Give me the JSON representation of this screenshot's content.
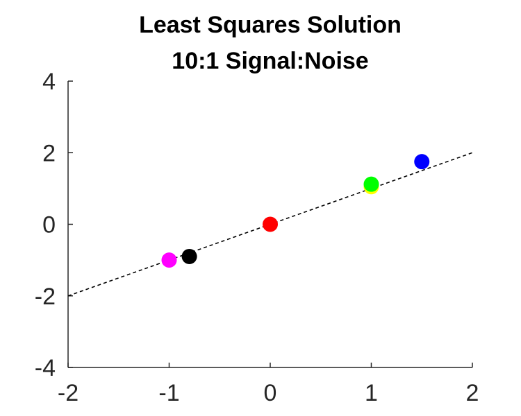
{
  "chart_data": {
    "type": "scatter",
    "title": "Least Squares Solution",
    "subtitle": "10:1 Signal:Noise",
    "xlabel": "",
    "ylabel": "",
    "xlim": [
      -2,
      2
    ],
    "ylim": [
      -4,
      4
    ],
    "xticks": [
      -2,
      -1,
      0,
      1,
      2
    ],
    "yticks": [
      -4,
      -2,
      0,
      2,
      4
    ],
    "xtick_labels": [
      "-2",
      "-1",
      "0",
      "1",
      "2"
    ],
    "ytick_labels": [
      "-4",
      "-2",
      "0",
      "2",
      "4"
    ],
    "grid": false,
    "points": [
      {
        "x": -1.0,
        "y": -1.0,
        "color": "#ff00ff"
      },
      {
        "x": -0.8,
        "y": -0.9,
        "color": "#000000"
      },
      {
        "x": 0.0,
        "y": 0.0,
        "color": "#ff0000"
      },
      {
        "x": 1.0,
        "y": 1.05,
        "color": "#ffff00"
      },
      {
        "x": 1.0,
        "y": 1.12,
        "color": "#00ff00"
      },
      {
        "x": 1.5,
        "y": 1.75,
        "color": "#0000ff"
      }
    ],
    "fit_line": {
      "slope": 1.0,
      "intercept": 0.0,
      "style": "dashed",
      "color": "#000000"
    }
  }
}
